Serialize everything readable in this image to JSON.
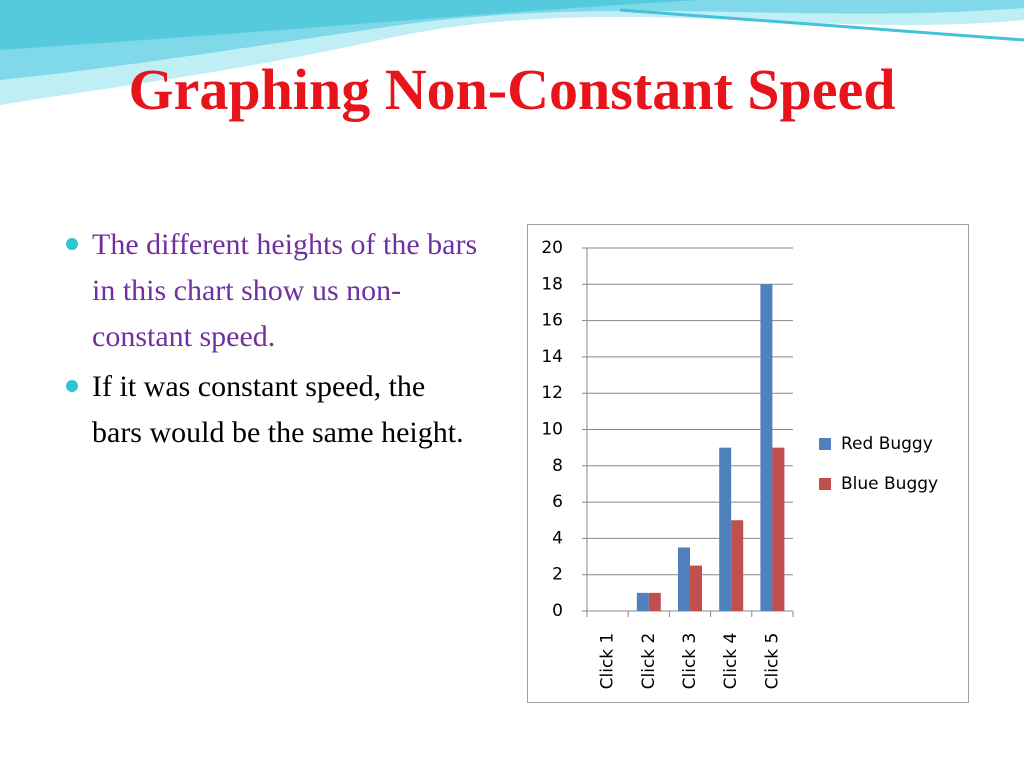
{
  "slide": {
    "title": "Graphing Non-Constant Speed",
    "bullets": [
      "The different heights of the bars in this chart show us non-constant speed.",
      "If it was constant speed, the bars would be the same height."
    ]
  },
  "chart_data": {
    "type": "bar",
    "categories": [
      "Click 1",
      "Click 2",
      "Click 3",
      "Click 4",
      "Click 5"
    ],
    "series": [
      {
        "name": "Red Buggy",
        "color": "#4f81bd",
        "values": [
          0,
          1,
          3.5,
          9,
          18
        ]
      },
      {
        "name": "Blue Buggy",
        "color": "#c0504d",
        "values": [
          0,
          1,
          2.5,
          5,
          9
        ]
      }
    ],
    "ylim": [
      0,
      20
    ],
    "yticks": [
      0,
      2,
      4,
      6,
      8,
      10,
      12,
      14,
      16,
      18,
      20
    ],
    "grid": true,
    "legend": "right"
  }
}
